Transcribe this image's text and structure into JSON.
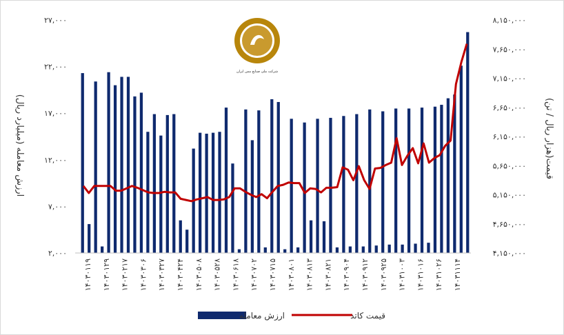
{
  "chart_data": {
    "type": "bar+line",
    "logo_text": "شرکت ملی صنایع مس ایران",
    "left_axis": {
      "title": "ارزش معامله (میلیارد ریال)",
      "min": 2000,
      "max": 27000,
      "ticks": [
        "۲,۰۰۰",
        "۷,۰۰۰",
        "۱۲,۰۰۰",
        "۱۷,۰۰۰",
        "۲۲,۰۰۰",
        "۲۷,۰۰۰"
      ]
    },
    "right_axis": {
      "title": "قیمت(هزار ریال / تن)",
      "min": 4150000,
      "max": 8150000,
      "ticks": [
        "۴,۱۵۰,۰۰۰",
        "۴,۶۵۰,۰۰۰",
        "۵,۱۵۰,۰۰۰",
        "۵,۶۵۰,۰۰۰",
        "۶,۱۵۰,۰۰۰",
        "۶,۶۵۰,۰۰۰",
        "۷,۱۵۰,۰۰۰",
        "۷,۶۵۰,۰۰۰",
        "۸,۱۵۰,۰۰۰"
      ]
    },
    "x_tick_labels": [
      "۱۴۰۳۰۱۱۹",
      "۱۴۰۳۰۱۲۹",
      "۱۴۰۳۰۲۱۷",
      "۱۴۰۳۰۳۰۶",
      "۱۴۰۳۰۳۲۷",
      "۱۴۰۳۰۴۲۴",
      "۱۴۰۳۰۵۰۸",
      "۱۴۰۳۰۵۲۸",
      "۱۴۰۳۰۶۱۸",
      "۱۴۰۳۰۷۰۲",
      "۱۴۰۳۰۷۱۵",
      "۱۴۰۳۰۸۰۱",
      "۱۴۰۳۰۸۱۳",
      "۱۴۰۳۰۸۲۱",
      "۱۴۰۳۰۹۰۴",
      "۱۴۰۳۰۹۱۲",
      "۱۴۰۳۰۹۲۵",
      "۱۴۰۳۱۰۰۳",
      "۱۴۰۳۱۰۱۶",
      "۱۴۰۳۱۰۲۶",
      "۱۴۰۳۱۱۱۴"
    ],
    "series": [
      {
        "name": "ارزش معامله",
        "kind": "bar",
        "axis": "left",
        "color": "#0f2a6e",
        "values": [
          21300,
          5100,
          20400,
          2700,
          21400,
          20000,
          20900,
          20900,
          18800,
          19200,
          15000,
          16900,
          14600,
          16800,
          16900,
          5500,
          4500,
          13200,
          14900,
          14800,
          14900,
          15000,
          17600,
          11600,
          2400,
          17400,
          14100,
          17300,
          2600,
          18500,
          18200,
          2400,
          16400,
          2600,
          16000,
          5500,
          16400,
          5400,
          16500,
          2600,
          16700,
          2700,
          16900,
          2700,
          17400,
          2800,
          17200,
          2900,
          17500,
          2900,
          17500,
          3000,
          17600,
          3100,
          17700,
          17900,
          18600,
          19000,
          22100,
          25700
        ]
      },
      {
        "name": "قیمت  کاتد",
        "kind": "line",
        "axis": "right",
        "color": "#c00000",
        "values": [
          5300000,
          5180000,
          5300000,
          5300000,
          5300000,
          5300000,
          5220000,
          5220000,
          5260000,
          5300000,
          5270000,
          5230000,
          5190000,
          5180000,
          5180000,
          5200000,
          5190000,
          5190000,
          5080000,
          5060000,
          5040000,
          5070000,
          5090000,
          5110000,
          5060000,
          5060000,
          5070000,
          5110000,
          5260000,
          5260000,
          5200000,
          5150000,
          5110000,
          5160000,
          5090000,
          5200000,
          5300000,
          5320000,
          5360000,
          5350000,
          5350000,
          5180000,
          5260000,
          5250000,
          5190000,
          5270000,
          5270000,
          5280000,
          5620000,
          5580000,
          5400000,
          5640000,
          5400000,
          5250000,
          5600000,
          5610000,
          5660000,
          5700000,
          6120000,
          5660000,
          5820000,
          5950000,
          5690000,
          6030000,
          5700000,
          5780000,
          5830000,
          5990000,
          6080000,
          7050000,
          7430000,
          7740000
        ]
      }
    ]
  }
}
